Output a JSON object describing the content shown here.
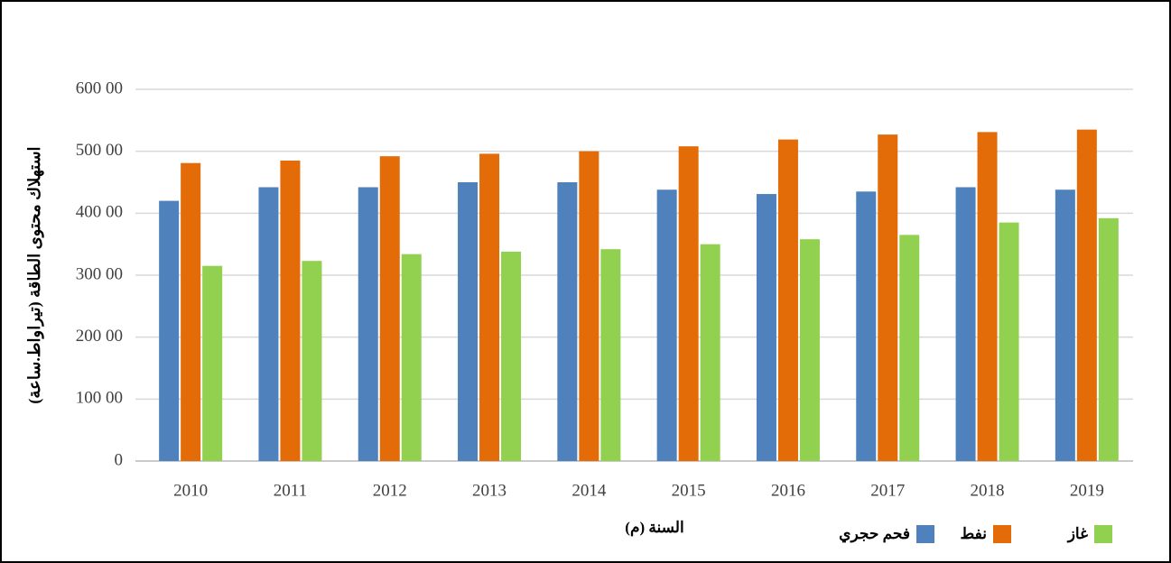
{
  "chart_data": {
    "type": "bar",
    "y_label": "استهلاك محتوى الطاقة (تيراواط.ساعة)",
    "x_label": "السنة (م)",
    "categories": [
      "2010",
      "2011",
      "2012",
      "2013",
      "2014",
      "2015",
      "2016",
      "2017",
      "2018",
      "2019"
    ],
    "series": [
      {
        "name": "فحم حجري",
        "color": "#4f81bd",
        "values": [
          42000,
          44200,
          44200,
          45000,
          45000,
          43800,
          43100,
          43500,
          44200,
          43800
        ]
      },
      {
        "name": "نفط",
        "color": "#e36c09",
        "values": [
          48100,
          48500,
          49200,
          49600,
          50000,
          50800,
          51900,
          52700,
          53100,
          53500
        ]
      },
      {
        "name": "غاز",
        "color": "#92d050",
        "values": [
          31500,
          32300,
          33400,
          33800,
          34200,
          35000,
          35800,
          36500,
          38500,
          39200
        ]
      }
    ],
    "ylim": [
      0,
      60000
    ],
    "yticks": [
      0,
      {
        "value": 10000,
        "label": "100 00"
      },
      {
        "value": 20000,
        "label": "200 00"
      },
      {
        "value": 30000,
        "label": "300 00"
      },
      {
        "value": 40000,
        "label": "400 00"
      },
      {
        "value": 50000,
        "label": "500 00"
      },
      {
        "value": 60000,
        "label": "600 00"
      }
    ],
    "grid": true,
    "legend": "bottom"
  }
}
